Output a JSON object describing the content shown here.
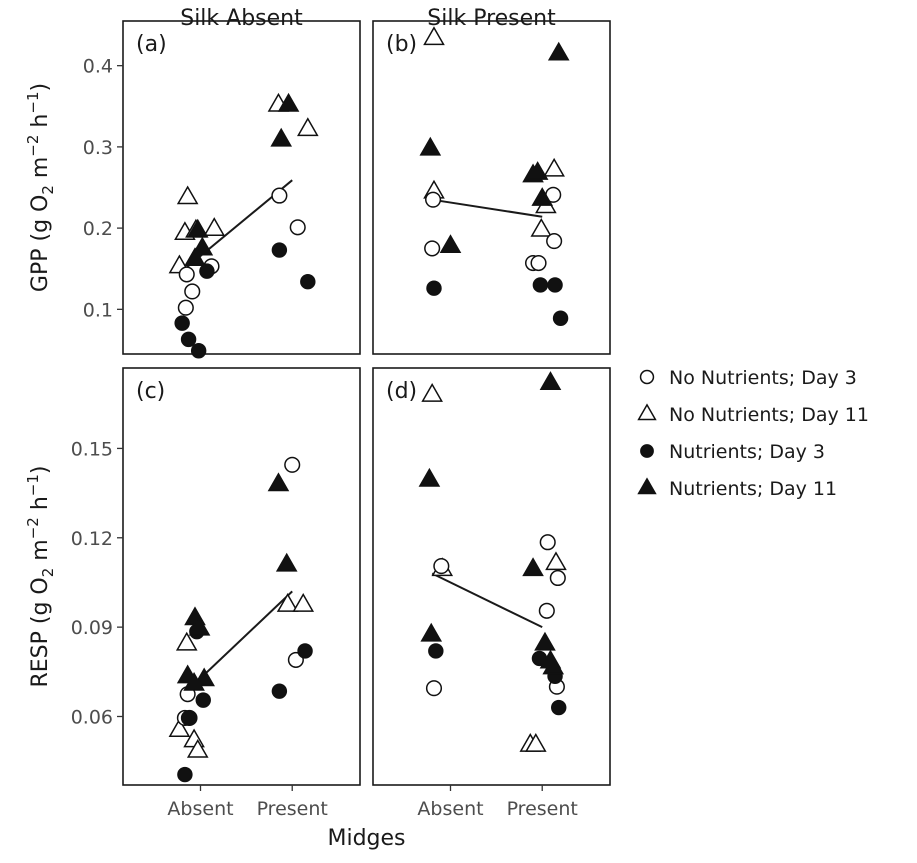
{
  "chart_data": {
    "type": "scatter",
    "facet_titles": [
      "Silk Absent",
      "Silk Present"
    ],
    "x_label": "Midges",
    "categories": [
      "Absent",
      "Present"
    ],
    "legend": [
      {
        "label": "No Nutrients; Day 3",
        "shape": "circle",
        "filled": false
      },
      {
        "label": "No Nutrients; Day 11",
        "shape": "triangle",
        "filled": false
      },
      {
        "label": "Nutrients; Day 3",
        "shape": "circle",
        "filled": true
      },
      {
        "label": "Nutrients; Day 11",
        "shape": "triangle",
        "filled": true
      }
    ],
    "legend_position": "right",
    "rows": [
      {
        "ylabel_main": "GPP (g O",
        "ylabel_sub1": "2",
        "ylabel_mid": " m",
        "ylabel_sup1": "−2",
        "ylabel_mid2": " h",
        "ylabel_sup2": "−1",
        "ylabel_end": ")",
        "ylim": [
          0.045,
          0.455
        ],
        "yticks": [
          0.1,
          0.2,
          0.3,
          0.4
        ],
        "ytick_labels": [
          "0.1",
          "0.2",
          "0.3",
          "0.4"
        ]
      },
      {
        "ylabel_main": "RESP (g O",
        "ylabel_sub1": "2",
        "ylabel_mid": " m",
        "ylabel_sup1": "−2",
        "ylabel_mid2": " h",
        "ylabel_sup2": "−1",
        "ylabel_end": ")",
        "ylim": [
          0.037,
          0.177
        ],
        "yticks": [
          0.06,
          0.09,
          0.12,
          0.15
        ],
        "ytick_labels": [
          "0.06",
          "0.09",
          "0.12",
          "0.15"
        ]
      }
    ],
    "panels": [
      {
        "label": "(a)",
        "row": 0,
        "col": 0,
        "fit_line": [
          {
            "x": 0.8,
            "y": 0.147
          },
          {
            "x": 2.0,
            "y": 0.259
          }
        ],
        "points": [
          {
            "x": 0.77,
            "y": 0.153,
            "shape": "triangle",
            "filled": false
          },
          {
            "x": 0.86,
            "y": 0.238,
            "shape": "triangle",
            "filled": false
          },
          {
            "x": 0.83,
            "y": 0.194,
            "shape": "triangle",
            "filled": false
          },
          {
            "x": 0.95,
            "y": 0.197,
            "shape": "triangle",
            "filled": false
          },
          {
            "x": 1.15,
            "y": 0.199,
            "shape": "triangle",
            "filled": false
          },
          {
            "x": 0.85,
            "y": 0.143,
            "shape": "circle",
            "filled": false
          },
          {
            "x": 0.84,
            "y": 0.102,
            "shape": "circle",
            "filled": false
          },
          {
            "x": 0.91,
            "y": 0.122,
            "shape": "circle",
            "filled": false
          },
          {
            "x": 1.12,
            "y": 0.153,
            "shape": "circle",
            "filled": false
          },
          {
            "x": 0.8,
            "y": 0.083,
            "shape": "circle",
            "filled": true
          },
          {
            "x": 0.87,
            "y": 0.063,
            "shape": "circle",
            "filled": true
          },
          {
            "x": 0.98,
            "y": 0.049,
            "shape": "circle",
            "filled": true
          },
          {
            "x": 1.07,
            "y": 0.147,
            "shape": "circle",
            "filled": true
          },
          {
            "x": 0.97,
            "y": 0.197,
            "shape": "triangle",
            "filled": true
          },
          {
            "x": 1.02,
            "y": 0.175,
            "shape": "triangle",
            "filled": true
          },
          {
            "x": 0.94,
            "y": 0.162,
            "shape": "triangle",
            "filled": true
          },
          {
            "x": 1.85,
            "y": 0.352,
            "shape": "triangle",
            "filled": false
          },
          {
            "x": 2.17,
            "y": 0.322,
            "shape": "triangle",
            "filled": false
          },
          {
            "x": 1.86,
            "y": 0.24,
            "shape": "circle",
            "filled": false
          },
          {
            "x": 2.06,
            "y": 0.201,
            "shape": "circle",
            "filled": false
          },
          {
            "x": 1.86,
            "y": 0.173,
            "shape": "circle",
            "filled": true
          },
          {
            "x": 2.17,
            "y": 0.134,
            "shape": "circle",
            "filled": true
          },
          {
            "x": 1.96,
            "y": 0.352,
            "shape": "triangle",
            "filled": true
          },
          {
            "x": 1.88,
            "y": 0.309,
            "shape": "triangle",
            "filled": true
          }
        ]
      },
      {
        "label": "(b)",
        "row": 0,
        "col": 1,
        "fit_line": [
          {
            "x": 0.8,
            "y": 0.235
          },
          {
            "x": 2.0,
            "y": 0.214
          }
        ],
        "points": [
          {
            "x": 0.82,
            "y": 0.434,
            "shape": "triangle",
            "filled": false
          },
          {
            "x": 0.82,
            "y": 0.245,
            "shape": "triangle",
            "filled": false
          },
          {
            "x": 0.81,
            "y": 0.235,
            "shape": "circle",
            "filled": false
          },
          {
            "x": 0.8,
            "y": 0.175,
            "shape": "circle",
            "filled": false
          },
          {
            "x": 0.82,
            "y": 0.126,
            "shape": "circle",
            "filled": true
          },
          {
            "x": 0.78,
            "y": 0.298,
            "shape": "triangle",
            "filled": true
          },
          {
            "x": 1.0,
            "y": 0.178,
            "shape": "triangle",
            "filled": true
          },
          {
            "x": 2.13,
            "y": 0.272,
            "shape": "triangle",
            "filled": false
          },
          {
            "x": 2.04,
            "y": 0.227,
            "shape": "triangle",
            "filled": false
          },
          {
            "x": 1.99,
            "y": 0.198,
            "shape": "triangle",
            "filled": false
          },
          {
            "x": 2.12,
            "y": 0.241,
            "shape": "circle",
            "filled": false
          },
          {
            "x": 2.13,
            "y": 0.184,
            "shape": "circle",
            "filled": false
          },
          {
            "x": 1.9,
            "y": 0.157,
            "shape": "circle",
            "filled": false
          },
          {
            "x": 1.96,
            "y": 0.157,
            "shape": "circle",
            "filled": false
          },
          {
            "x": 1.98,
            "y": 0.13,
            "shape": "circle",
            "filled": true
          },
          {
            "x": 2.14,
            "y": 0.13,
            "shape": "circle",
            "filled": true
          },
          {
            "x": 2.2,
            "y": 0.089,
            "shape": "circle",
            "filled": true
          },
          {
            "x": 2.18,
            "y": 0.415,
            "shape": "triangle",
            "filled": true
          },
          {
            "x": 1.9,
            "y": 0.265,
            "shape": "triangle",
            "filled": true
          },
          {
            "x": 1.95,
            "y": 0.268,
            "shape": "triangle",
            "filled": true
          },
          {
            "x": 2.0,
            "y": 0.236,
            "shape": "triangle",
            "filled": true
          }
        ]
      },
      {
        "label": "(c)",
        "row": 1,
        "col": 0,
        "fit_line": [
          {
            "x": 0.8,
            "y": 0.067
          },
          {
            "x": 2.0,
            "y": 0.102
          }
        ],
        "points": [
          {
            "x": 0.85,
            "y": 0.0845,
            "shape": "triangle",
            "filled": false
          },
          {
            "x": 0.77,
            "y": 0.0555,
            "shape": "triangle",
            "filled": false
          },
          {
            "x": 0.93,
            "y": 0.052,
            "shape": "triangle",
            "filled": false
          },
          {
            "x": 0.97,
            "y": 0.0485,
            "shape": "triangle",
            "filled": false
          },
          {
            "x": 0.86,
            "y": 0.0675,
            "shape": "circle",
            "filled": false
          },
          {
            "x": 0.83,
            "y": 0.0595,
            "shape": "circle",
            "filled": false
          },
          {
            "x": 0.88,
            "y": 0.0595,
            "shape": "circle",
            "filled": false
          },
          {
            "x": 0.83,
            "y": 0.0405,
            "shape": "circle",
            "filled": true
          },
          {
            "x": 0.87,
            "y": 0.0595,
            "shape": "circle",
            "filled": true
          },
          {
            "x": 0.96,
            "y": 0.0885,
            "shape": "circle",
            "filled": true
          },
          {
            "x": 1.03,
            "y": 0.0655,
            "shape": "circle",
            "filled": true
          },
          {
            "x": 0.94,
            "y": 0.093,
            "shape": "triangle",
            "filled": true
          },
          {
            "x": 0.99,
            "y": 0.0895,
            "shape": "triangle",
            "filled": true
          },
          {
            "x": 0.86,
            "y": 0.0735,
            "shape": "triangle",
            "filled": true
          },
          {
            "x": 1.04,
            "y": 0.0725,
            "shape": "triangle",
            "filled": true
          },
          {
            "x": 0.93,
            "y": 0.071,
            "shape": "triangle",
            "filled": true
          },
          {
            "x": 1.95,
            "y": 0.0975,
            "shape": "triangle",
            "filled": false
          },
          {
            "x": 2.12,
            "y": 0.0975,
            "shape": "triangle",
            "filled": false
          },
          {
            "x": 2.0,
            "y": 0.1445,
            "shape": "circle",
            "filled": false
          },
          {
            "x": 2.04,
            "y": 0.079,
            "shape": "circle",
            "filled": false
          },
          {
            "x": 1.86,
            "y": 0.0685,
            "shape": "circle",
            "filled": true
          },
          {
            "x": 2.14,
            "y": 0.082,
            "shape": "circle",
            "filled": true
          },
          {
            "x": 1.85,
            "y": 0.138,
            "shape": "triangle",
            "filled": true
          },
          {
            "x": 1.94,
            "y": 0.111,
            "shape": "triangle",
            "filled": true
          }
        ]
      },
      {
        "label": "(d)",
        "row": 1,
        "col": 1,
        "fit_line": [
          {
            "x": 0.8,
            "y": 0.108
          },
          {
            "x": 2.0,
            "y": 0.09
          }
        ],
        "points": [
          {
            "x": 0.8,
            "y": 0.168,
            "shape": "triangle",
            "filled": false
          },
          {
            "x": 0.91,
            "y": 0.1095,
            "shape": "triangle",
            "filled": false
          },
          {
            "x": 0.9,
            "y": 0.1105,
            "shape": "circle",
            "filled": false
          },
          {
            "x": 0.82,
            "y": 0.0695,
            "shape": "circle",
            "filled": false
          },
          {
            "x": 0.84,
            "y": 0.082,
            "shape": "circle",
            "filled": true
          },
          {
            "x": 0.77,
            "y": 0.1395,
            "shape": "triangle",
            "filled": true
          },
          {
            "x": 0.79,
            "y": 0.0875,
            "shape": "triangle",
            "filled": true
          },
          {
            "x": 1.87,
            "y": 0.0505,
            "shape": "triangle",
            "filled": false
          },
          {
            "x": 1.93,
            "y": 0.0505,
            "shape": "triangle",
            "filled": false
          },
          {
            "x": 2.15,
            "y": 0.1115,
            "shape": "triangle",
            "filled": false
          },
          {
            "x": 2.06,
            "y": 0.1185,
            "shape": "circle",
            "filled": false
          },
          {
            "x": 2.17,
            "y": 0.1065,
            "shape": "circle",
            "filled": false
          },
          {
            "x": 2.05,
            "y": 0.0955,
            "shape": "circle",
            "filled": false
          },
          {
            "x": 2.16,
            "y": 0.07,
            "shape": "circle",
            "filled": false
          },
          {
            "x": 1.97,
            "y": 0.0795,
            "shape": "circle",
            "filled": true
          },
          {
            "x": 2.14,
            "y": 0.0735,
            "shape": "circle",
            "filled": true
          },
          {
            "x": 2.18,
            "y": 0.063,
            "shape": "circle",
            "filled": true
          },
          {
            "x": 2.09,
            "y": 0.172,
            "shape": "triangle",
            "filled": true
          },
          {
            "x": 1.9,
            "y": 0.1095,
            "shape": "triangle",
            "filled": true
          },
          {
            "x": 2.03,
            "y": 0.0845,
            "shape": "triangle",
            "filled": true
          },
          {
            "x": 2.09,
            "y": 0.0785,
            "shape": "triangle",
            "filled": true
          },
          {
            "x": 2.12,
            "y": 0.0765,
            "shape": "triangle",
            "filled": true
          }
        ]
      }
    ]
  }
}
